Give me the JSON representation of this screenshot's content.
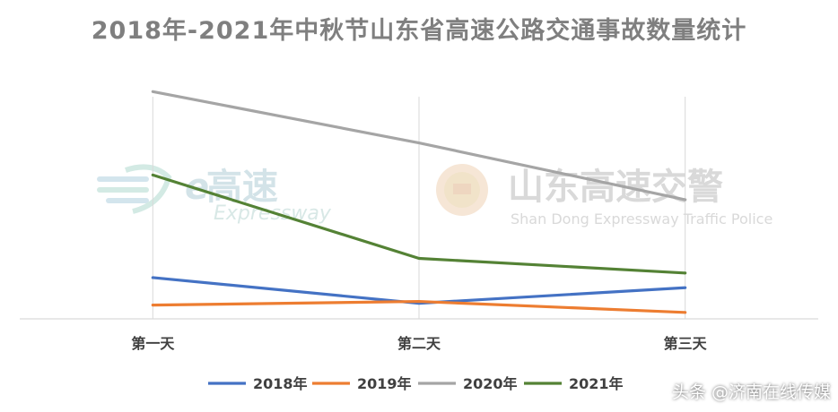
{
  "chart_data": {
    "type": "line",
    "title": "2018年-2021年中秋节山东省高速公路交通事故数量统计",
    "categories": [
      "第一天",
      "第二天",
      "第三天"
    ],
    "series": [
      {
        "name": "2018年",
        "color": "#4472c4",
        "values": [
          45,
          17,
          34
        ]
      },
      {
        "name": "2019年",
        "color": "#ed7d31",
        "values": [
          15,
          19,
          7
        ]
      },
      {
        "name": "2020年",
        "color": "#a5a5a5",
        "values": [
          248,
          192,
          130
        ]
      },
      {
        "name": "2021年",
        "color": "#548235",
        "values": [
          157,
          66,
          50
        ]
      }
    ],
    "ylim": [
      0,
      260
    ],
    "grid": "vertical",
    "legend": "bottom"
  },
  "watermarks": {
    "left_big": "高速",
    "left_small": "Expressway",
    "right_big": "山东高速交警",
    "right_small": "Shan Dong Expressway Traffic Police"
  },
  "credit": "头条 @济南在线传媒"
}
